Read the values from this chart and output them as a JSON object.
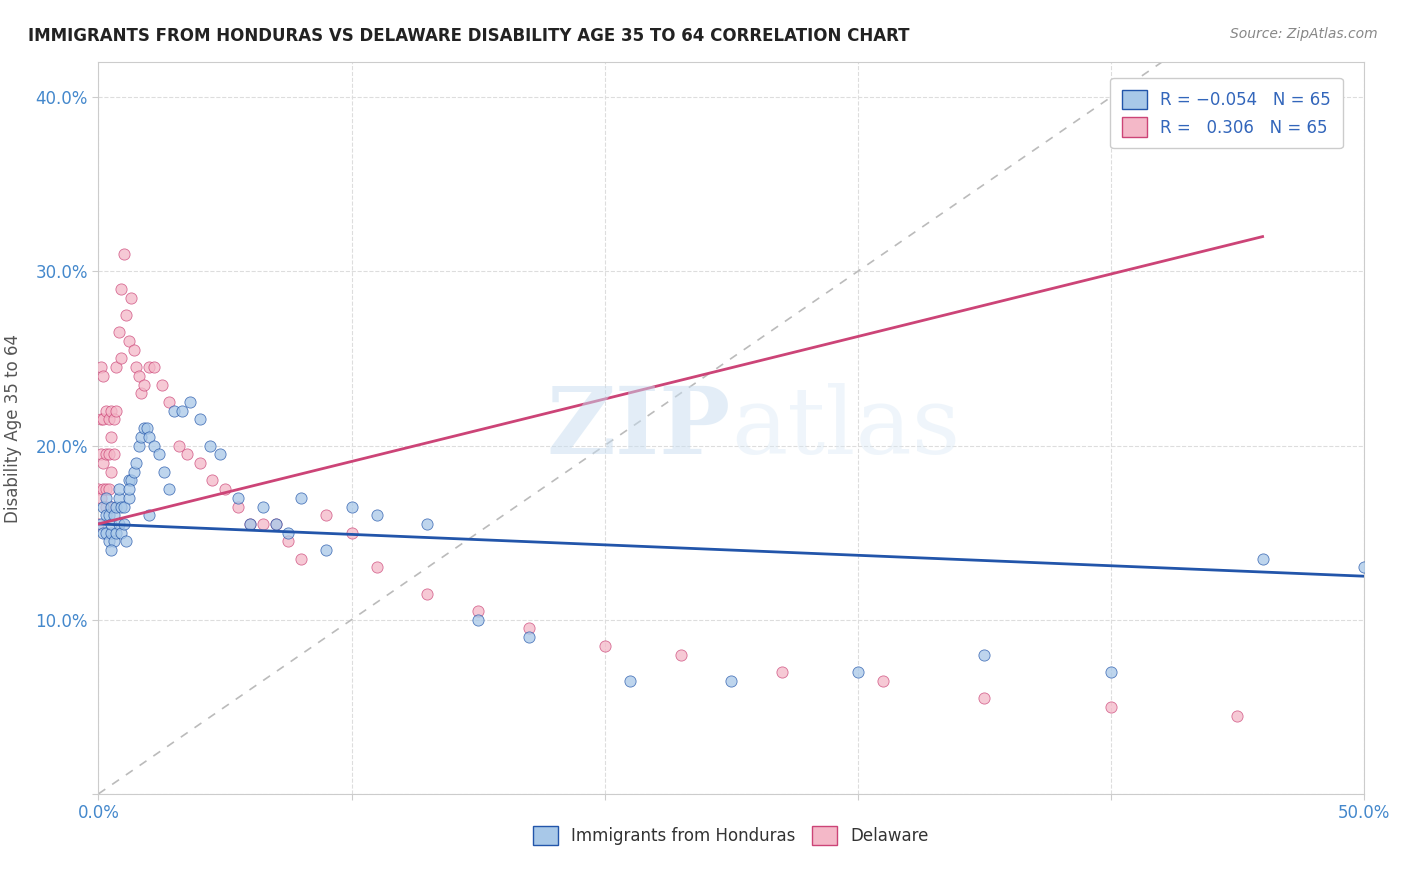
{
  "title": "IMMIGRANTS FROM HONDURAS VS DELAWARE DISABILITY AGE 35 TO 64 CORRELATION CHART",
  "source": "Source: ZipAtlas.com",
  "xlabel_label": "Immigrants from Honduras",
  "ylabel_label": "Disability Age 35 to 64",
  "xlim": [
    0.0,
    0.5
  ],
  "ylim": [
    0.0,
    0.42
  ],
  "color_blue": "#a8c8e8",
  "color_pink": "#f4b8c8",
  "line_blue": "#2255aa",
  "line_pink": "#cc4477",
  "watermark_zip": "ZIP",
  "watermark_atlas": "atlas",
  "blue_x": [
    0.001,
    0.002,
    0.002,
    0.003,
    0.003,
    0.003,
    0.004,
    0.004,
    0.005,
    0.005,
    0.005,
    0.006,
    0.006,
    0.007,
    0.007,
    0.008,
    0.008,
    0.009,
    0.009,
    0.01,
    0.01,
    0.011,
    0.012,
    0.012,
    0.013,
    0.014,
    0.015,
    0.016,
    0.017,
    0.018,
    0.019,
    0.02,
    0.022,
    0.024,
    0.026,
    0.028,
    0.03,
    0.033,
    0.036,
    0.04,
    0.044,
    0.048,
    0.055,
    0.06,
    0.065,
    0.07,
    0.075,
    0.08,
    0.09,
    0.1,
    0.11,
    0.13,
    0.15,
    0.17,
    0.21,
    0.25,
    0.3,
    0.35,
    0.4,
    0.46,
    0.5,
    0.005,
    0.008,
    0.012,
    0.02
  ],
  "blue_y": [
    0.155,
    0.15,
    0.165,
    0.15,
    0.16,
    0.17,
    0.145,
    0.16,
    0.15,
    0.155,
    0.165,
    0.145,
    0.16,
    0.15,
    0.165,
    0.155,
    0.17,
    0.15,
    0.165,
    0.155,
    0.165,
    0.145,
    0.17,
    0.18,
    0.18,
    0.185,
    0.19,
    0.2,
    0.205,
    0.21,
    0.21,
    0.205,
    0.2,
    0.195,
    0.185,
    0.175,
    0.22,
    0.22,
    0.225,
    0.215,
    0.2,
    0.195,
    0.17,
    0.155,
    0.165,
    0.155,
    0.15,
    0.17,
    0.14,
    0.165,
    0.16,
    0.155,
    0.1,
    0.09,
    0.065,
    0.065,
    0.07,
    0.08,
    0.07,
    0.135,
    0.13,
    0.14,
    0.175,
    0.175,
    0.16
  ],
  "pink_x": [
    0.0,
    0.0,
    0.001,
    0.001,
    0.001,
    0.001,
    0.002,
    0.002,
    0.002,
    0.003,
    0.003,
    0.003,
    0.004,
    0.004,
    0.004,
    0.005,
    0.005,
    0.005,
    0.006,
    0.006,
    0.007,
    0.007,
    0.008,
    0.009,
    0.009,
    0.01,
    0.011,
    0.012,
    0.013,
    0.014,
    0.015,
    0.016,
    0.017,
    0.018,
    0.02,
    0.022,
    0.025,
    0.028,
    0.032,
    0.035,
    0.04,
    0.045,
    0.05,
    0.055,
    0.06,
    0.065,
    0.07,
    0.075,
    0.08,
    0.09,
    0.1,
    0.11,
    0.13,
    0.15,
    0.17,
    0.2,
    0.23,
    0.27,
    0.31,
    0.35,
    0.4,
    0.45,
    0.002,
    0.003,
    0.005
  ],
  "pink_y": [
    0.155,
    0.175,
    0.17,
    0.195,
    0.215,
    0.245,
    0.175,
    0.19,
    0.215,
    0.175,
    0.195,
    0.22,
    0.175,
    0.195,
    0.215,
    0.185,
    0.205,
    0.22,
    0.195,
    0.215,
    0.22,
    0.245,
    0.265,
    0.25,
    0.29,
    0.31,
    0.275,
    0.26,
    0.285,
    0.255,
    0.245,
    0.24,
    0.23,
    0.235,
    0.245,
    0.245,
    0.235,
    0.225,
    0.2,
    0.195,
    0.19,
    0.18,
    0.175,
    0.165,
    0.155,
    0.155,
    0.155,
    0.145,
    0.135,
    0.16,
    0.15,
    0.13,
    0.115,
    0.105,
    0.095,
    0.085,
    0.08,
    0.07,
    0.065,
    0.055,
    0.05,
    0.045,
    0.24,
    0.165,
    0.165
  ],
  "blue_line_x0": 0.0,
  "blue_line_x1": 0.5,
  "blue_line_y0": 0.155,
  "blue_line_y1": 0.125,
  "pink_line_x0": 0.0,
  "pink_line_x1": 0.46,
  "pink_line_y0": 0.155,
  "pink_line_y1": 0.32
}
